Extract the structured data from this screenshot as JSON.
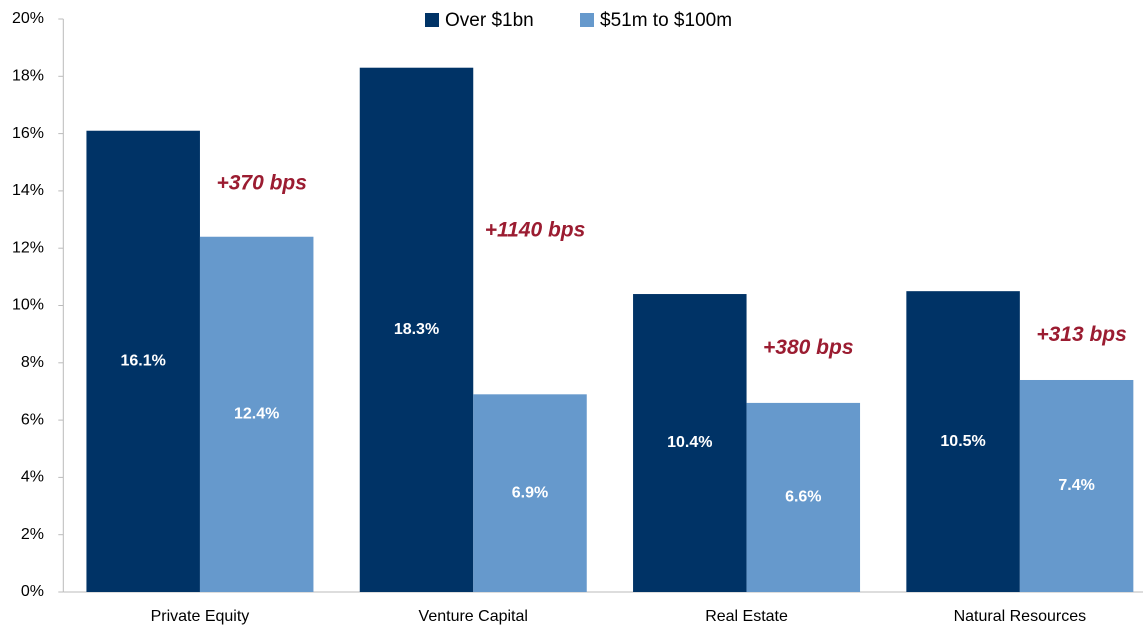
{
  "chart_data": {
    "type": "bar",
    "categories": [
      "Private Equity",
      "Venture Capital",
      "Real Estate",
      "Natural Resources"
    ],
    "series": [
      {
        "name": "Over $1bn",
        "color": "#003366",
        "values": [
          16.1,
          18.3,
          10.4,
          10.5
        ],
        "value_labels": [
          "16.1%",
          "18.3%",
          "10.4%",
          "10.5%"
        ]
      },
      {
        "name": "$51m to $100m",
        "color": "#6699cc",
        "values": [
          12.4,
          6.9,
          6.6,
          7.4
        ],
        "value_labels": [
          "12.4%",
          "6.9%",
          "6.6%",
          "7.4%"
        ]
      }
    ],
    "annotations": [
      "+370 bps",
      "+1140 bps",
      "+380 bps",
      "+313 bps"
    ],
    "ylim": [
      0,
      20
    ],
    "yticks": [
      {
        "value": 0,
        "label": "0%"
      },
      {
        "value": 2,
        "label": "2%"
      },
      {
        "value": 4,
        "label": "4%"
      },
      {
        "value": 6,
        "label": "6%"
      },
      {
        "value": 8,
        "label": "8%"
      },
      {
        "value": 10,
        "label": "10%"
      },
      {
        "value": 12,
        "label": "12%"
      },
      {
        "value": 14,
        "label": "14%"
      },
      {
        "value": 16,
        "label": "16%"
      },
      {
        "value": 18,
        "label": "18%"
      },
      {
        "value": 20,
        "label": "20%"
      }
    ],
    "legend": "top"
  }
}
